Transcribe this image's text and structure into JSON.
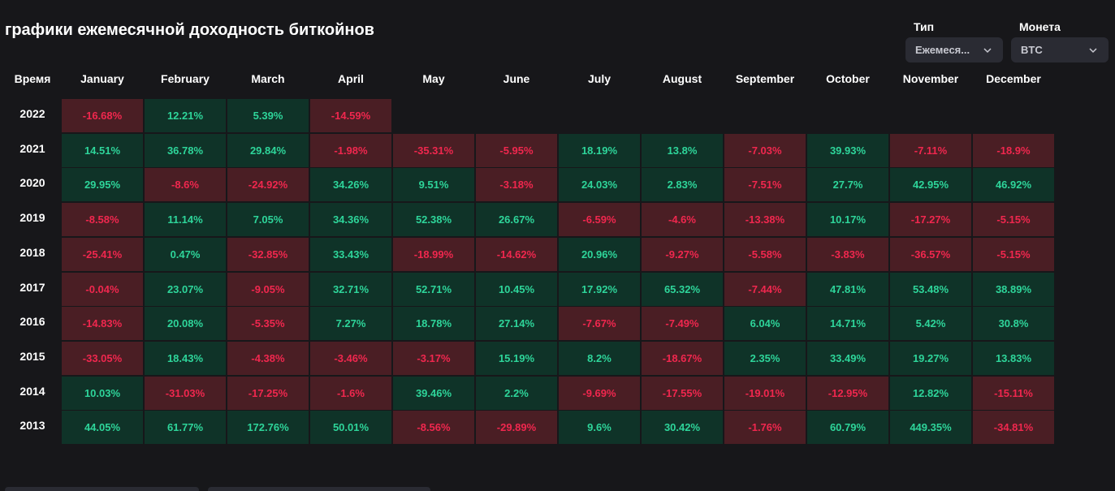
{
  "title": "графики ежемесячной доходность биткойнов",
  "filters": {
    "type_label": "Тип",
    "type_value": "Ежемеся...",
    "coin_label": "Монета",
    "coin_value": "BTC"
  },
  "table": {
    "row_header": "Время",
    "months": [
      "January",
      "February",
      "March",
      "April",
      "May",
      "June",
      "July",
      "August",
      "September",
      "October",
      "November",
      "December"
    ],
    "rows": [
      {
        "year": "2022",
        "values": [
          "-16.68%",
          "12.21%",
          "5.39%",
          "-14.59%",
          "",
          "",
          "",
          "",
          "",
          "",
          "",
          ""
        ]
      },
      {
        "year": "2021",
        "values": [
          "14.51%",
          "36.78%",
          "29.84%",
          "-1.98%",
          "-35.31%",
          "-5.95%",
          "18.19%",
          "13.8%",
          "-7.03%",
          "39.93%",
          "-7.11%",
          "-18.9%"
        ]
      },
      {
        "year": "2020",
        "values": [
          "29.95%",
          "-8.6%",
          "-24.92%",
          "34.26%",
          "9.51%",
          "-3.18%",
          "24.03%",
          "2.83%",
          "-7.51%",
          "27.7%",
          "42.95%",
          "46.92%"
        ]
      },
      {
        "year": "2019",
        "values": [
          "-8.58%",
          "11.14%",
          "7.05%",
          "34.36%",
          "52.38%",
          "26.67%",
          "-6.59%",
          "-4.6%",
          "-13.38%",
          "10.17%",
          "-17.27%",
          "-5.15%"
        ]
      },
      {
        "year": "2018",
        "values": [
          "-25.41%",
          "0.47%",
          "-32.85%",
          "33.43%",
          "-18.99%",
          "-14.62%",
          "20.96%",
          "-9.27%",
          "-5.58%",
          "-3.83%",
          "-36.57%",
          "-5.15%"
        ]
      },
      {
        "year": "2017",
        "values": [
          "-0.04%",
          "23.07%",
          "-9.05%",
          "32.71%",
          "52.71%",
          "10.45%",
          "17.92%",
          "65.32%",
          "-7.44%",
          "47.81%",
          "53.48%",
          "38.89%"
        ]
      },
      {
        "year": "2016",
        "values": [
          "-14.83%",
          "20.08%",
          "-5.35%",
          "7.27%",
          "18.78%",
          "27.14%",
          "-7.67%",
          "-7.49%",
          "6.04%",
          "14.71%",
          "5.42%",
          "30.8%"
        ]
      },
      {
        "year": "2015",
        "values": [
          "-33.05%",
          "18.43%",
          "-4.38%",
          "-3.46%",
          "-3.17%",
          "15.19%",
          "8.2%",
          "-18.67%",
          "2.35%",
          "33.49%",
          "19.27%",
          "13.83%"
        ]
      },
      {
        "year": "2014",
        "values": [
          "10.03%",
          "-31.03%",
          "-17.25%",
          "-1.6%",
          "39.46%",
          "2.2%",
          "-9.69%",
          "-17.55%",
          "-19.01%",
          "-12.95%",
          "12.82%",
          "-15.11%"
        ]
      },
      {
        "year": "2013",
        "values": [
          "44.05%",
          "61.77%",
          "172.76%",
          "50.01%",
          "-8.56%",
          "-29.89%",
          "9.6%",
          "30.42%",
          "-1.76%",
          "60.79%",
          "449.35%",
          "-34.81%"
        ]
      }
    ]
  },
  "colors": {
    "background": "#17171a",
    "positive_bg": "#0f3328",
    "positive_text": "#2ed59a",
    "negative_bg": "#4a1e24",
    "negative_text": "#f0274e"
  }
}
